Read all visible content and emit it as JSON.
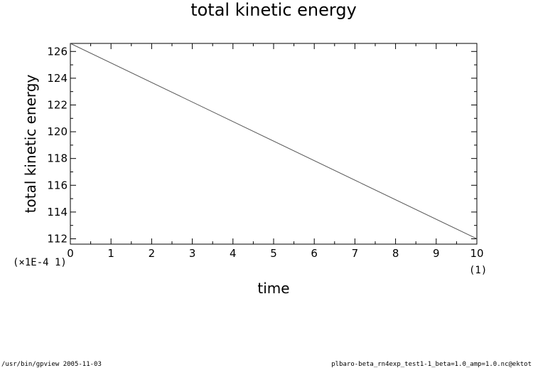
{
  "chart_data": {
    "type": "line",
    "title": "total kinetic energy",
    "xlabel": "time",
    "ylabel": "total kinetic energy",
    "xlim": [
      0,
      10
    ],
    "ylim": [
      111.6,
      126.6
    ],
    "x_ticks": [
      0,
      1,
      2,
      3,
      4,
      5,
      6,
      7,
      8,
      9,
      10
    ],
    "y_ticks": [
      112,
      114,
      116,
      118,
      120,
      122,
      124,
      126
    ],
    "x_scale_label": "(1)",
    "y_scale_label": "(×1E-4 1)",
    "grid": false,
    "series": [
      {
        "x": [
          0,
          10
        ],
        "y": [
          126.6,
          112.0
        ],
        "color": "#555555"
      }
    ]
  },
  "footer": {
    "left": "/usr/bin/gpview  2005-11-03",
    "right": "plbaro-beta_rn4exp_test1-1_beta=1.0_amp=1.0.nc@ektot"
  }
}
